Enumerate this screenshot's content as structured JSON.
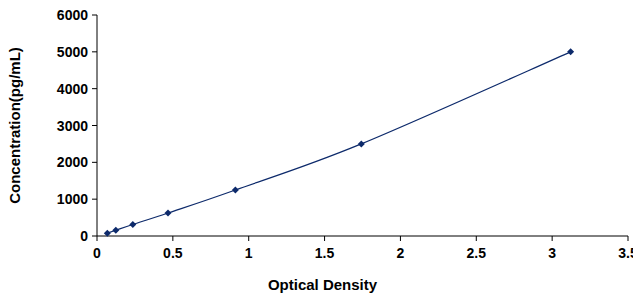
{
  "chart_data": {
    "type": "line",
    "x_label": "Optical Density",
    "y_label": "Concentration(pg/mL)",
    "x": [
      0.068,
      0.124,
      0.236,
      0.468,
      0.912,
      1.742,
      3.122
    ],
    "series": [
      {
        "name": null,
        "color": "#0d2a6b",
        "marker": "diamond",
        "line_style": "smooth",
        "values": [
          78,
          156,
          312,
          625,
          1250,
          2500,
          5000
        ]
      }
    ],
    "xlim": [
      0,
      3.5
    ],
    "xticks": [
      0,
      0.5,
      1,
      1.5,
      2,
      2.5,
      3,
      3.5
    ],
    "ylim": [
      0,
      6000
    ],
    "yticks": [
      0,
      1000,
      2000,
      3000,
      4000,
      5000,
      6000
    ],
    "grid": false
  }
}
